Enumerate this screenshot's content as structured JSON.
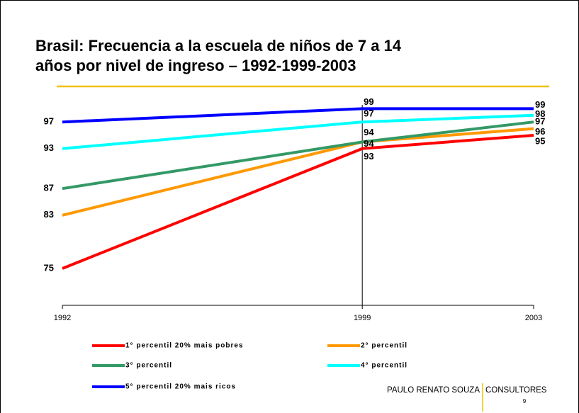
{
  "chart_data": {
    "type": "line",
    "title": [
      "Brasil: Frecuencia a la escuela de niños de 7 a 14",
      "años por nivel de ingreso – 1992-1999-2003"
    ],
    "x": [
      1992,
      1999,
      2003
    ],
    "xlim": [
      1992,
      2003
    ],
    "xticks": [
      1992,
      1999,
      2003
    ],
    "ylim": [
      70,
      100
    ],
    "series": [
      {
        "name": "1° percentil 20% mais pobres",
        "color": "#ff0000",
        "values": [
          75,
          93,
          95
        ]
      },
      {
        "name": "2° percentil",
        "color": "#ff9900",
        "values": [
          83,
          94,
          96
        ]
      },
      {
        "name": "3° percentil",
        "color": "#339966",
        "values": [
          87,
          94,
          97
        ]
      },
      {
        "name": "4° percentil",
        "color": "#00ffff",
        "values": [
          93,
          97,
          98
        ]
      },
      {
        "name": "5° percentil 20% mais ricos",
        "color": "#0000ff",
        "values": [
          97,
          99,
          99
        ]
      }
    ],
    "footer": {
      "brand": "PAULO RENATO SOUZA",
      "suffix": "CONSULTORES",
      "page": "9"
    }
  }
}
